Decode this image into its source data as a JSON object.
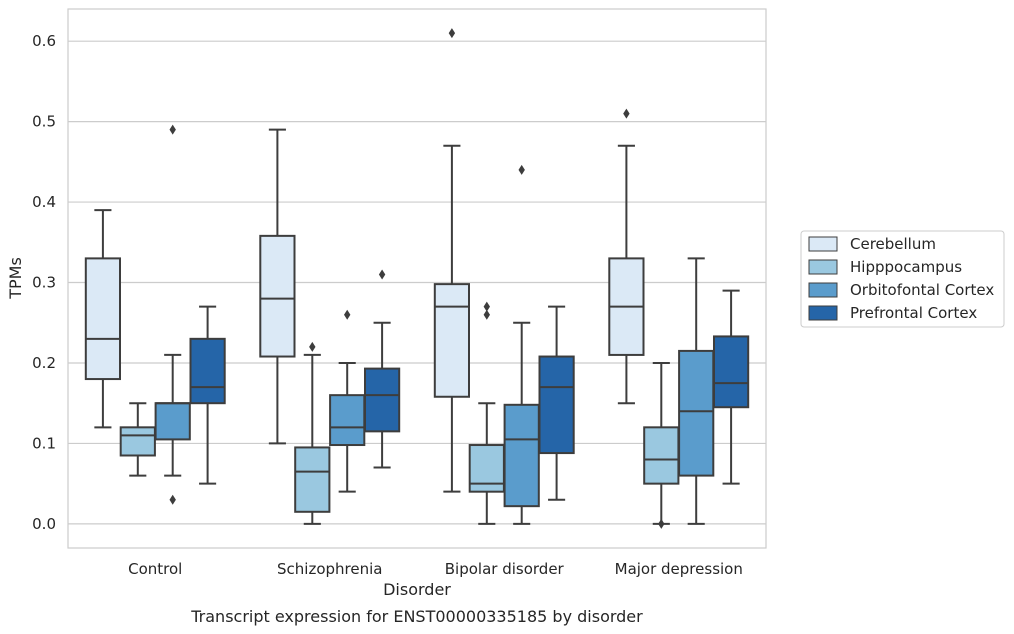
{
  "chart_data": {
    "type": "box",
    "xlabel": "Disorder",
    "ylabel": "TPMs",
    "caption": "Transcript expression for ENST00000335185 by disorder",
    "ylim": [
      -0.03,
      0.64
    ],
    "y_ticks": [
      "0.0",
      "0.1",
      "0.2",
      "0.3",
      "0.4",
      "0.5",
      "0.6"
    ],
    "grid": "horizontal",
    "legend_placement": "right",
    "categories": [
      "Control",
      "Schizophrenia",
      "Bipolar disorder",
      "Major depression"
    ],
    "series": [
      {
        "name": "Cerebellum",
        "color": "#dbe9f6",
        "boxes": [
          {
            "whisker_low": 0.12,
            "q1": 0.18,
            "median": 0.23,
            "q3": 0.33,
            "whisker_high": 0.39,
            "outliers": []
          },
          {
            "whisker_low": 0.1,
            "q1": 0.208,
            "median": 0.28,
            "q3": 0.358,
            "whisker_high": 0.49,
            "outliers": []
          },
          {
            "whisker_low": 0.04,
            "q1": 0.158,
            "median": 0.27,
            "q3": 0.298,
            "whisker_high": 0.47,
            "outliers": [
              0.61
            ]
          },
          {
            "whisker_low": 0.15,
            "q1": 0.21,
            "median": 0.27,
            "q3": 0.33,
            "whisker_high": 0.47,
            "outliers": [
              0.51
            ]
          }
        ]
      },
      {
        "name": "Hipppocampus",
        "color": "#9ac8e0",
        "boxes": [
          {
            "whisker_low": 0.06,
            "q1": 0.085,
            "median": 0.11,
            "q3": 0.12,
            "whisker_high": 0.15,
            "outliers": []
          },
          {
            "whisker_low": 0.0,
            "q1": 0.015,
            "median": 0.065,
            "q3": 0.095,
            "whisker_high": 0.21,
            "outliers": [
              0.22
            ]
          },
          {
            "whisker_low": 0.0,
            "q1": 0.04,
            "median": 0.05,
            "q3": 0.098,
            "whisker_high": 0.15,
            "outliers": [
              0.26,
              0.27
            ]
          },
          {
            "whisker_low": 0.0,
            "q1": 0.05,
            "median": 0.08,
            "q3": 0.12,
            "whisker_high": 0.2,
            "outliers": [
              0.0
            ]
          }
        ]
      },
      {
        "name": "Orbitofontal Cortex",
        "color": "#5a9ccc",
        "boxes": [
          {
            "whisker_low": 0.06,
            "q1": 0.105,
            "median": 0.15,
            "q3": 0.15,
            "whisker_high": 0.21,
            "outliers": [
              0.03,
              0.49
            ]
          },
          {
            "whisker_low": 0.04,
            "q1": 0.098,
            "median": 0.12,
            "q3": 0.16,
            "whisker_high": 0.2,
            "outliers": [
              0.26
            ]
          },
          {
            "whisker_low": 0.0,
            "q1": 0.022,
            "median": 0.105,
            "q3": 0.148,
            "whisker_high": 0.25,
            "outliers": [
              0.44
            ]
          },
          {
            "whisker_low": 0.0,
            "q1": 0.06,
            "median": 0.14,
            "q3": 0.215,
            "whisker_high": 0.33,
            "outliers": []
          }
        ]
      },
      {
        "name": "Prefrontal Cortex",
        "color": "#2565a8",
        "boxes": [
          {
            "whisker_low": 0.05,
            "q1": 0.15,
            "median": 0.17,
            "q3": 0.23,
            "whisker_high": 0.27,
            "outliers": []
          },
          {
            "whisker_low": 0.07,
            "q1": 0.115,
            "median": 0.16,
            "q3": 0.193,
            "whisker_high": 0.25,
            "outliers": [
              0.31
            ]
          },
          {
            "whisker_low": 0.03,
            "q1": 0.088,
            "median": 0.17,
            "q3": 0.208,
            "whisker_high": 0.27,
            "outliers": []
          },
          {
            "whisker_low": 0.05,
            "q1": 0.145,
            "median": 0.175,
            "q3": 0.233,
            "whisker_high": 0.29,
            "outliers": []
          }
        ]
      }
    ]
  }
}
